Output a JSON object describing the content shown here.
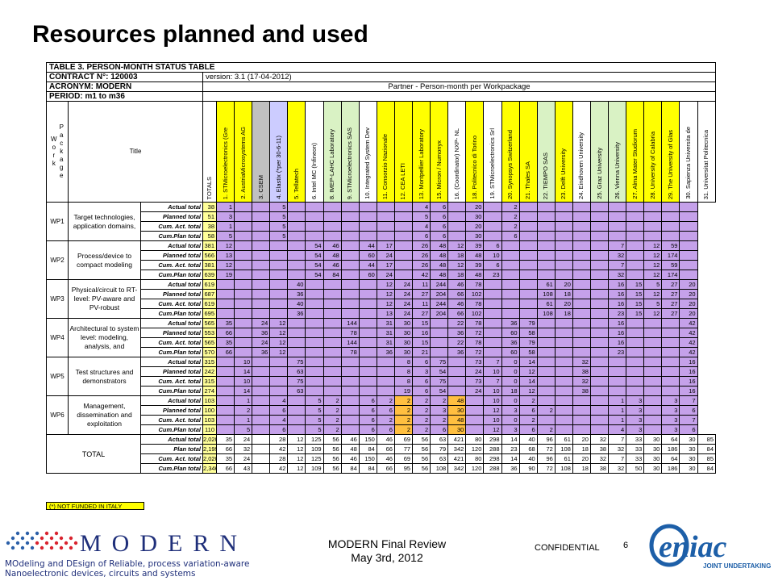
{
  "slide": {
    "title": "Resources planned and used"
  },
  "table": {
    "title": "TABLE 3. PERSON-MONTH STATUS TABLE",
    "contract": "CONTRACT N°: 120003",
    "version": "version: 3.1 (17-04-2012)",
    "acronym": "ACRONYM: MODERN",
    "partner_header": "Partner - Person-month per Workpackage",
    "period": "PERIOD: m1 to m36",
    "col_workpackage_letters": [
      "W",
      "o",
      "r",
      "k"
    ],
    "col_package_letters": [
      "P",
      "a",
      "c",
      "k",
      "a",
      "g",
      "e"
    ],
    "col_title": "Title",
    "col_totals": "TOTALS",
    "partners": [
      {
        "label": "1. STMicroelectronics (Gre",
        "color": "yel"
      },
      {
        "label": "2. AustriaMicrosystems AG",
        "color": "yel"
      },
      {
        "label": "3. CSEM",
        "color": "gry"
      },
      {
        "label": "4. Elastix (*per 30-6-11)",
        "color": "lav"
      },
      {
        "label": "5. Tellatech",
        "color": "yel"
      },
      {
        "label": "6. Intel MC (Infineon)",
        "color": "wht"
      },
      {
        "label": "8. IMEP-LAHC Laboratory",
        "color": "grn"
      },
      {
        "label": "9. STMicroelectronics SAS",
        "color": "grn"
      },
      {
        "label": "10. Integrated System Dev",
        "color": "wht"
      },
      {
        "label": "11. Consorzio Nazionale",
        "color": "yel"
      },
      {
        "label": "12. CEA LETI",
        "color": "yel"
      },
      {
        "label": "13. Montpellier Laboratory",
        "color": "yel"
      },
      {
        "label": "15. Micron / Numonyx",
        "color": "yel"
      },
      {
        "label": "16. (Coordinator) NXP- NL",
        "color": "wht"
      },
      {
        "label": "18. Politecnico di Torino",
        "color": "yel"
      },
      {
        "label": "19. STMicroelectronics Srl",
        "color": "wht"
      },
      {
        "label": "20. Synopsys Switzerland",
        "color": "yel"
      },
      {
        "label": "21. Thales SA",
        "color": "yel"
      },
      {
        "label": "22. TIEMPO SAS",
        "color": "grn"
      },
      {
        "label": "23. Delft University",
        "color": "yel"
      },
      {
        "label": "24. Eindhoven University",
        "color": "wht"
      },
      {
        "label": "25. Graz University",
        "color": "grn"
      },
      {
        "label": "26. Vienna University",
        "color": "grn"
      },
      {
        "label": "27. Alma Mater Studiorum",
        "color": "yel"
      },
      {
        "label": "28. University of Calabria",
        "color": "yel"
      },
      {
        "label": "29. The University of Glas",
        "color": "yel"
      },
      {
        "label": "30. Sapienza Universita de",
        "color": "wht"
      },
      {
        "label": "31. Universitat Politecnica",
        "color": "wht"
      }
    ],
    "row_types": [
      "Actual total",
      "Planned total",
      "Cum. Act. total",
      "Cum.Plan total"
    ],
    "workpackages": [
      {
        "id": "WP1",
        "title": "Target technologies, application domains,",
        "rows": [
          [
            "38",
            "1",
            "",
            "",
            "5",
            "",
            "",
            "",
            "",
            "",
            "",
            "",
            "4",
            "6",
            "",
            "20",
            "",
            "2",
            "",
            "",
            "",
            "",
            "",
            "",
            "",
            "",
            "",
            ""
          ],
          [
            "51",
            "3",
            "",
            "",
            "5",
            "",
            "",
            "",
            "",
            "",
            "",
            "",
            "5",
            "6",
            "",
            "30",
            "",
            "2",
            "",
            "",
            "",
            "",
            "",
            "",
            "",
            "",
            "",
            ""
          ],
          [
            "38",
            "1",
            "",
            "",
            "5",
            "",
            "",
            "",
            "",
            "",
            "",
            "",
            "4",
            "6",
            "",
            "20",
            "",
            "2",
            "",
            "",
            "",
            "",
            "",
            "",
            "",
            "",
            "",
            ""
          ],
          [
            "58",
            "5",
            "",
            "",
            "5",
            "",
            "",
            "",
            "",
            "",
            "",
            "",
            "6",
            "6",
            "",
            "30",
            "",
            "6",
            "",
            "",
            "",
            "",
            "",
            "",
            "",
            "",
            "",
            ""
          ]
        ]
      },
      {
        "id": "WP2",
        "title": "Process/device to compact modeling",
        "rows": [
          [
            "381",
            "12",
            "",
            "",
            "",
            "",
            "54",
            "46",
            "",
            "44",
            "17",
            "",
            "26",
            "48",
            "12",
            "39",
            "6",
            "",
            "",
            "",
            "",
            "",
            "",
            "7",
            "",
            "12",
            "59",
            ""
          ],
          [
            "566",
            "13",
            "",
            "",
            "",
            "",
            "54",
            "48",
            "",
            "60",
            "24",
            "",
            "26",
            "48",
            "18",
            "48",
            "10",
            "",
            "",
            "",
            "",
            "",
            "",
            "32",
            "",
            "12",
            "174",
            ""
          ],
          [
            "381",
            "12",
            "",
            "",
            "",
            "",
            "54",
            "46",
            "",
            "44",
            "17",
            "",
            "26",
            "48",
            "12",
            "39",
            "6",
            "",
            "",
            "",
            "",
            "",
            "",
            "7",
            "",
            "12",
            "59",
            ""
          ],
          [
            "639",
            "19",
            "",
            "",
            "",
            "",
            "54",
            "84",
            "",
            "60",
            "24",
            "",
            "42",
            "48",
            "18",
            "48",
            "23",
            "",
            "",
            "",
            "",
            "",
            "",
            "32",
            "",
            "12",
            "174",
            ""
          ]
        ]
      },
      {
        "id": "WP3",
        "title": "Physical/circuit to RT-level: PV-aware and PV-robust",
        "rows": [
          [
            "619",
            "",
            "",
            "",
            "",
            "40",
            "",
            "",
            "",
            "",
            "12",
            "24",
            "11",
            "244",
            "46",
            "78",
            "",
            "",
            "",
            "61",
            "20",
            "",
            "",
            "16",
            "15",
            "5",
            "27",
            "20"
          ],
          [
            "687",
            "",
            "",
            "",
            "",
            "36",
            "",
            "",
            "",
            "",
            "12",
            "24",
            "27",
            "204",
            "66",
            "102",
            "",
            "",
            "",
            "108",
            "18",
            "",
            "",
            "16",
            "15",
            "12",
            "27",
            "20"
          ],
          [
            "619",
            "",
            "",
            "",
            "",
            "40",
            "",
            "",
            "",
            "",
            "12",
            "24",
            "11",
            "244",
            "46",
            "78",
            "",
            "",
            "",
            "61",
            "20",
            "",
            "",
            "16",
            "15",
            "5",
            "27",
            "20"
          ],
          [
            "695",
            "",
            "",
            "",
            "",
            "36",
            "",
            "",
            "",
            "",
            "13",
            "24",
            "27",
            "204",
            "66",
            "102",
            "",
            "",
            "",
            "108",
            "18",
            "",
            "",
            "23",
            "15",
            "12",
            "27",
            "20"
          ]
        ]
      },
      {
        "id": "WP4",
        "title": "Architectural to system level: modeling, analysis, and",
        "rows": [
          [
            "565",
            "35",
            "",
            "24",
            "12",
            "",
            "",
            "",
            "144",
            "",
            "31",
            "30",
            "15",
            "",
            "22",
            "78",
            "",
            "36",
            "79",
            "",
            "",
            "",
            "",
            "16",
            "",
            "",
            "",
            "42"
          ],
          [
            "553",
            "66",
            "",
            "36",
            "12",
            "",
            "",
            "",
            "78",
            "",
            "31",
            "30",
            "16",
            "",
            "36",
            "72",
            "",
            "60",
            "58",
            "",
            "",
            "",
            "",
            "16",
            "",
            "",
            "",
            "42"
          ],
          [
            "565",
            "35",
            "",
            "24",
            "12",
            "",
            "",
            "",
            "144",
            "",
            "31",
            "30",
            "15",
            "",
            "22",
            "78",
            "",
            "36",
            "79",
            "",
            "",
            "",
            "",
            "16",
            "",
            "",
            "",
            "42"
          ],
          [
            "570",
            "66",
            "",
            "36",
            "12",
            "",
            "",
            "",
            "78",
            "",
            "36",
            "30",
            "21",
            "",
            "36",
            "72",
            "",
            "60",
            "58",
            "",
            "",
            "",
            "",
            "23",
            "",
            "",
            "",
            "42"
          ]
        ]
      },
      {
        "id": "WP5",
        "title": "Test structures and demonstrators",
        "rows": [
          [
            "315",
            "",
            "10",
            "",
            "",
            "75",
            "",
            "",
            "",
            "",
            "",
            "8",
            "6",
            "75",
            "",
            "73",
            "7",
            "0",
            "14",
            "",
            "",
            "32",
            "",
            "",
            "",
            "",
            "",
            "16"
          ],
          [
            "242",
            "",
            "14",
            "",
            "",
            "63",
            "",
            "",
            "",
            "",
            "",
            "8",
            "3",
            "54",
            "",
            "24",
            "10",
            "0",
            "12",
            "",
            "",
            "38",
            "",
            "",
            "",
            "",
            "",
            "16"
          ],
          [
            "315",
            "",
            "10",
            "",
            "",
            "75",
            "",
            "",
            "",
            "",
            "",
            "8",
            "6",
            "75",
            "",
            "73",
            "7",
            "0",
            "14",
            "",
            "",
            "32",
            "",
            "",
            "",
            "",
            "",
            "16"
          ],
          [
            "274",
            "",
            "14",
            "",
            "",
            "63",
            "",
            "",
            "",
            "",
            "",
            "19",
            "6",
            "54",
            "",
            "24",
            "10",
            "18",
            "12",
            "",
            "",
            "38",
            "",
            "",
            "",
            "",
            "",
            "16"
          ]
        ]
      },
      {
        "id": "WP6",
        "title": "Management, dissemination and exploitation",
        "rows": [
          [
            "103",
            "",
            "1",
            "",
            "4",
            "",
            "5",
            "2",
            "",
            "6",
            "2",
            "2",
            "2",
            "2",
            "48",
            "",
            "10",
            "0",
            "2",
            "",
            "",
            "",
            "",
            "1",
            "3",
            "",
            "3",
            "7"
          ],
          [
            "100",
            "",
            "2",
            "",
            "6",
            "",
            "5",
            "2",
            "",
            "6",
            "6",
            "2",
            "2",
            "3",
            "30",
            "",
            "12",
            "3",
            "6",
            "2",
            "",
            "",
            "",
            "1",
            "3",
            "",
            "3",
            "6"
          ],
          [
            "103",
            "",
            "1",
            "",
            "4",
            "",
            "5",
            "2",
            "",
            "6",
            "2",
            "2",
            "2",
            "2",
            "48",
            "",
            "10",
            "0",
            "2",
            "",
            "",
            "",
            "",
            "1",
            "3",
            "",
            "3",
            "7"
          ],
          [
            "110",
            "",
            "5",
            "",
            "6",
            "",
            "5",
            "2",
            "",
            "6",
            "6",
            "2",
            "2",
            "6",
            "30",
            "",
            "12",
            "3",
            "6",
            "2",
            "",
            "",
            "",
            "4",
            "3",
            "",
            "3",
            "6"
          ]
        ]
      }
    ],
    "total": {
      "label": "TOTAL",
      "row_types": [
        "Actual total",
        "Plan total",
        "Cum. Act. total",
        "Cum.Plan total"
      ],
      "rows": [
        [
          "2,020",
          "35",
          "24",
          "",
          "28",
          "12",
          "125",
          "56",
          "46",
          "150",
          "46",
          "69",
          "56",
          "63",
          "421",
          "80",
          "298",
          "14",
          "40",
          "96",
          "61",
          "20",
          "32",
          "7",
          "33",
          "30",
          "64",
          "30",
          "85"
        ],
        [
          "2,199",
          "66",
          "32",
          "",
          "42",
          "12",
          "109",
          "56",
          "48",
          "84",
          "66",
          "77",
          "56",
          "79",
          "342",
          "120",
          "288",
          "23",
          "68",
          "72",
          "108",
          "18",
          "38",
          "32",
          "33",
          "30",
          "186",
          "30",
          "84"
        ],
        [
          "2,020",
          "35",
          "24",
          "",
          "28",
          "12",
          "125",
          "56",
          "46",
          "150",
          "46",
          "69",
          "56",
          "63",
          "421",
          "80",
          "298",
          "14",
          "40",
          "96",
          "61",
          "20",
          "32",
          "7",
          "33",
          "30",
          "64",
          "30",
          "85"
        ],
        [
          "2,346",
          "66",
          "43",
          "",
          "42",
          "12",
          "109",
          "56",
          "84",
          "84",
          "66",
          "95",
          "56",
          "108",
          "342",
          "120",
          "288",
          "36",
          "90",
          "72",
          "108",
          "18",
          "38",
          "32",
          "50",
          "30",
          "186",
          "30",
          "84"
        ]
      ]
    },
    "note": "(*) NOT FUNDED IN ITALY"
  },
  "footer": {
    "review_line1": "MODERN Final Review",
    "review_line2": "May 3rd, 2012",
    "confidential": "CONFIDENTIAL",
    "page_number": "6",
    "modern_logo_word": "MODERN",
    "modern_tagline_1": "MOdeling and DEsign of Reliable, process variation-aware",
    "modern_tagline_2": "Nanoelectronic devices, circuits and systems",
    "eniac_word": "eniac",
    "eniac_sub": "JOINT UNDERTAKING"
  },
  "colors": {
    "accent_purple": "#c5a1ea",
    "highlight_orange": "#ffbf40",
    "partner_yellow": "#ffff00",
    "partner_green": "#d9f2c4",
    "modern_blue": "#1f2f7a"
  }
}
